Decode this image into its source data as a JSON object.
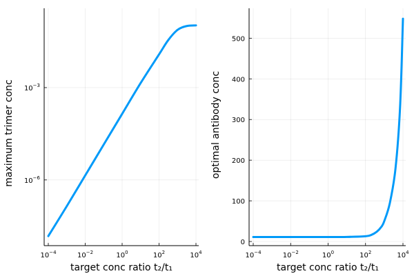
{
  "chart_data": [
    {
      "type": "line",
      "xscale": "log10",
      "yscale": "log10",
      "xlabel": "target conc ratio t₂/t₁",
      "ylabel": "maximum trimer conc",
      "xlim": [
        0.0001,
        10000
      ],
      "ylim": [
        1e-08,
        0.25
      ],
      "grid": true,
      "legend": "none",
      "xticks": [
        {
          "value": 0.0001,
          "base": "10",
          "exp": "−4"
        },
        {
          "value": 0.01,
          "base": "10",
          "exp": "−2"
        },
        {
          "value": 1,
          "base": "10",
          "exp": "0"
        },
        {
          "value": 100,
          "base": "10",
          "exp": "2"
        },
        {
          "value": 10000,
          "base": "10",
          "exp": "4"
        }
      ],
      "yticks": [
        {
          "value": 1e-06,
          "base": "10",
          "exp": "−6"
        },
        {
          "value": 0.001,
          "base": "10",
          "exp": "−3"
        }
      ],
      "series": [
        {
          "color": "#009af9",
          "x": [
            0.0001,
            0.001,
            0.01,
            0.1,
            1,
            10,
            100,
            316,
            1000,
            3162,
            10000
          ],
          "y": [
            1.5e-08,
            1.4e-07,
            1.4e-06,
            1.4e-05,
            0.00014,
            0.0014,
            0.012,
            0.035,
            0.075,
            0.1,
            0.105
          ]
        }
      ]
    },
    {
      "type": "line",
      "xscale": "log10",
      "yscale": "linear",
      "xlabel": "target conc ratio t₂/t₁",
      "ylabel": "optimal antibody conc",
      "xlim": [
        0.0001,
        10000
      ],
      "ylim": [
        0,
        560
      ],
      "grid": true,
      "legend": "none",
      "xticks": [
        {
          "value": 0.0001,
          "base": "10",
          "exp": "−4"
        },
        {
          "value": 0.01,
          "base": "10",
          "exp": "−2"
        },
        {
          "value": 1,
          "base": "10",
          "exp": "0"
        },
        {
          "value": 100,
          "base": "10",
          "exp": "2"
        },
        {
          "value": 10000,
          "base": "10",
          "exp": "4"
        }
      ],
      "yticks": [
        {
          "value": 0,
          "label": "0"
        },
        {
          "value": 100,
          "label": "100"
        },
        {
          "value": 200,
          "label": "200"
        },
        {
          "value": 300,
          "label": "300"
        },
        {
          "value": 400,
          "label": "400"
        },
        {
          "value": 500,
          "label": "500"
        }
      ],
      "series": [
        {
          "color": "#009af9",
          "x": [
            0.0001,
            0.001,
            0.01,
            0.1,
            1,
            10,
            100,
            200,
            400,
            700,
            1000,
            2000,
            4000,
            7000,
            10000
          ],
          "y": [
            11,
            11,
            11,
            11,
            11,
            11.3,
            13,
            16,
            24,
            36,
            50,
            95,
            180,
            330,
            548
          ]
        }
      ]
    }
  ]
}
